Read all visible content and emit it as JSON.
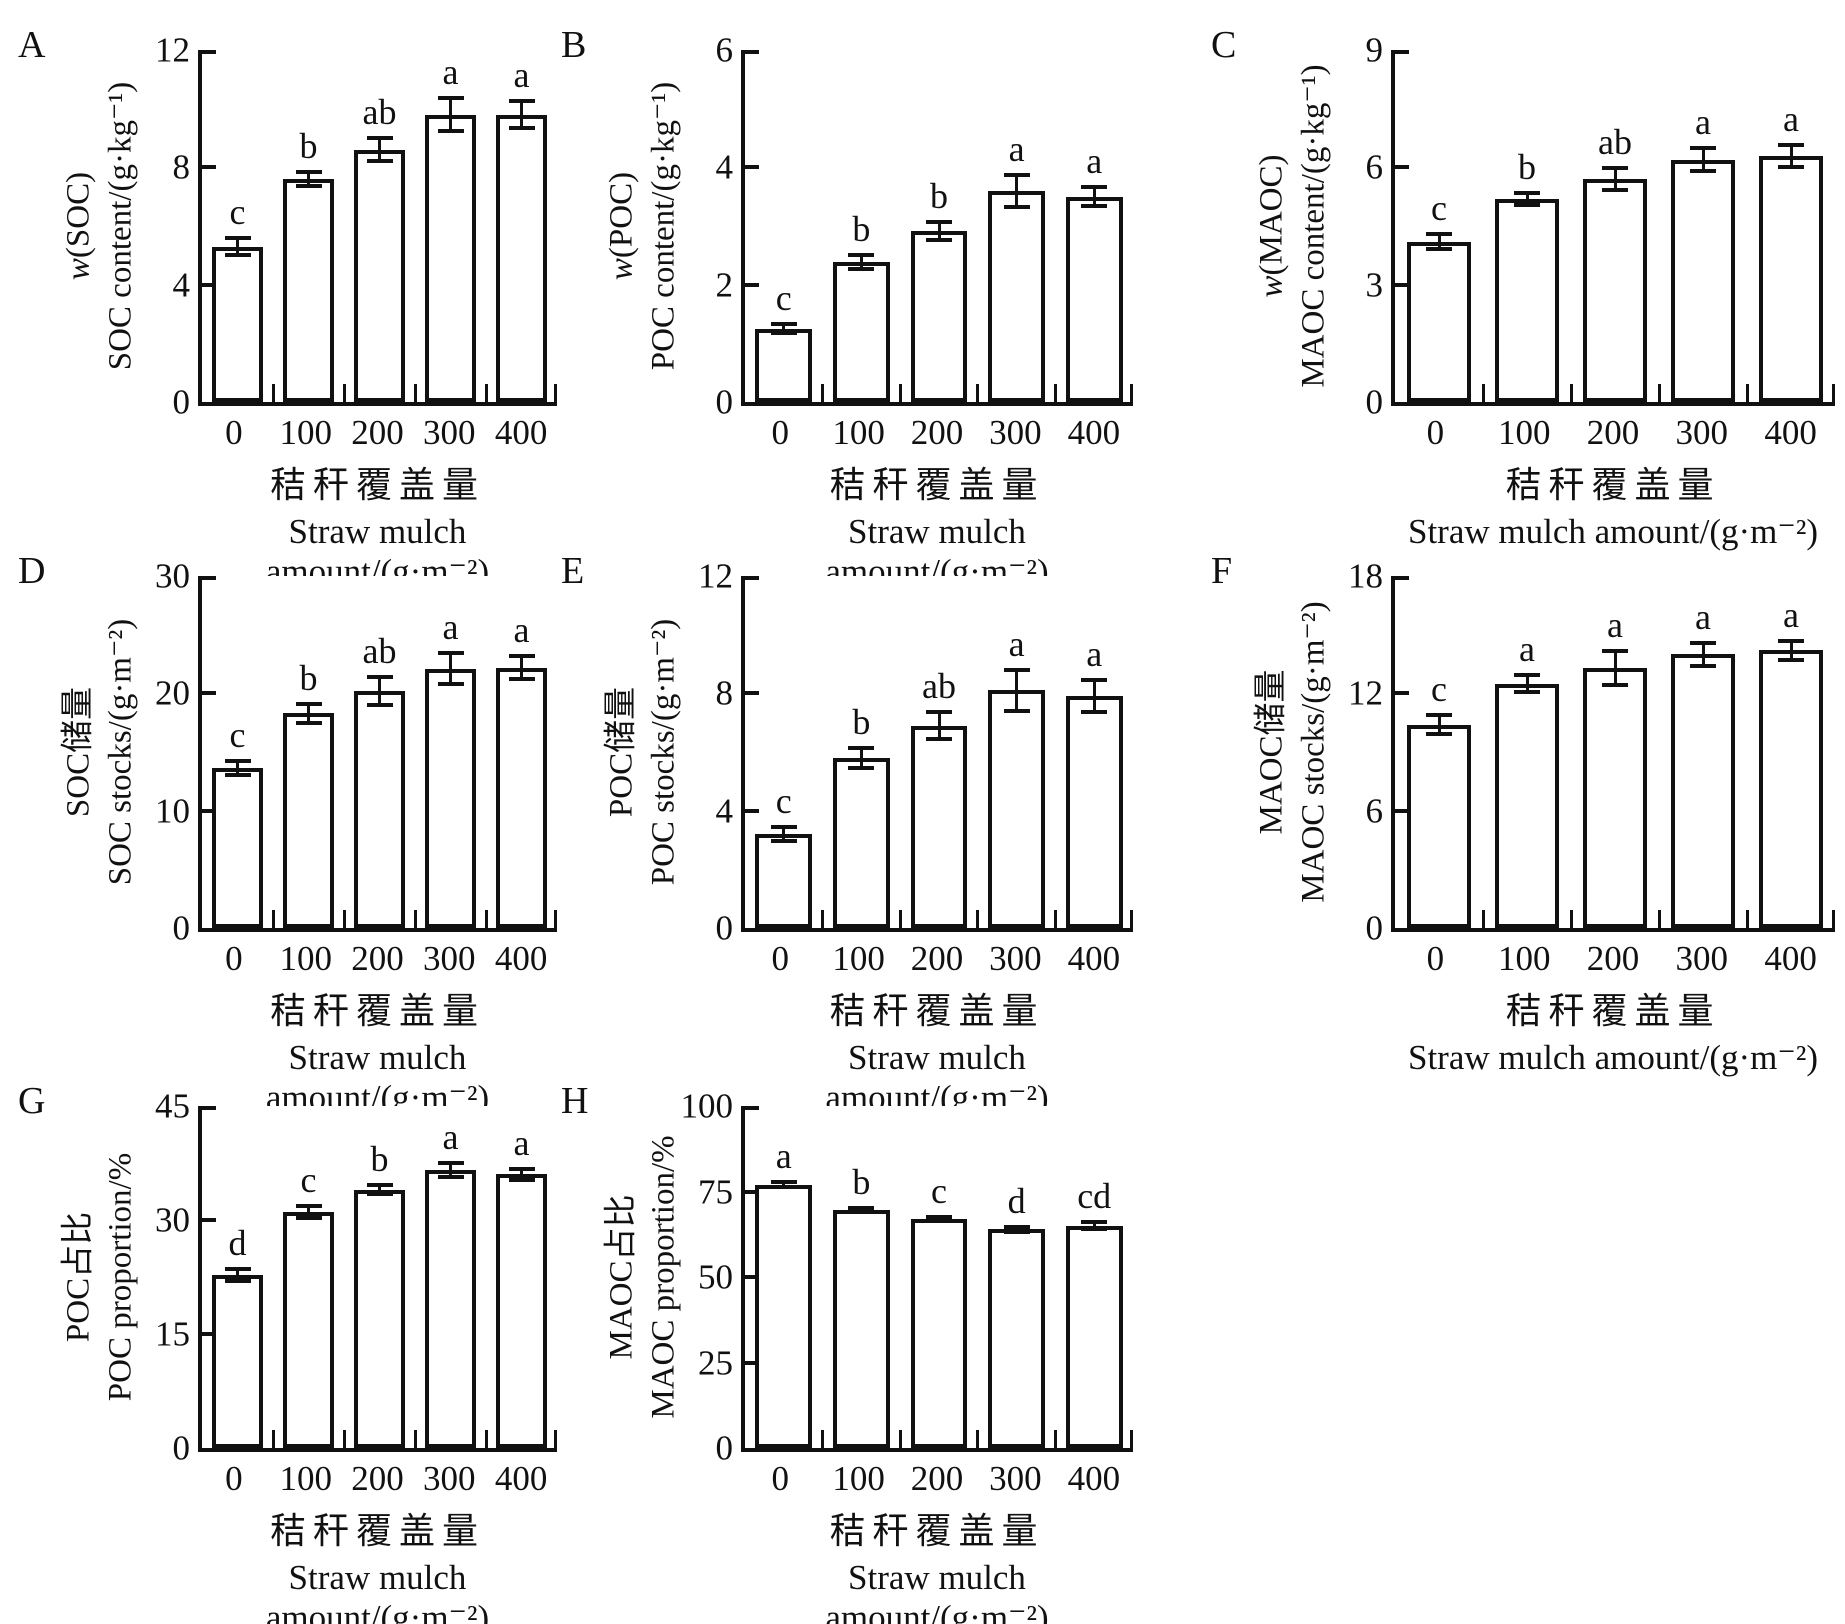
{
  "styles": {
    "background": "#ffffff",
    "ink": "#111111",
    "bar_fill": "#ffffff"
  },
  "x_axis": {
    "categories": [
      "0",
      "100",
      "200",
      "300",
      "400"
    ],
    "title_zh": "秸秆覆盖量",
    "title_en": "Straw mulch amount/(g·m⁻²)"
  },
  "chart_data": [
    {
      "type": "bar",
      "panel": "A",
      "ylabel_line1": "w(SOC)",
      "ylabel_line1_italic_first": true,
      "ylabel_line2": "SOC content/(g·kg⁻¹)",
      "ylim": [
        0,
        12
      ],
      "yticks": [
        0,
        4,
        8,
        12
      ],
      "categories": [
        "0",
        "100",
        "200",
        "300",
        "400"
      ],
      "values": [
        5.3,
        7.6,
        8.6,
        9.8,
        9.8
      ],
      "errors": [
        0.3,
        0.25,
        0.4,
        0.55,
        0.45
      ],
      "sig_letters": [
        "c",
        "b",
        "ab",
        "a",
        "a"
      ]
    },
    {
      "type": "bar",
      "panel": "B",
      "ylabel_line1": "w(POC)",
      "ylabel_line1_italic_first": true,
      "ylabel_line2": "POC content/(g·kg⁻¹)",
      "ylim": [
        0,
        6
      ],
      "yticks": [
        0,
        2,
        4,
        6
      ],
      "categories": [
        "0",
        "100",
        "200",
        "300",
        "400"
      ],
      "values": [
        1.25,
        2.38,
        2.92,
        3.6,
        3.5
      ],
      "errors": [
        0.08,
        0.12,
        0.15,
        0.27,
        0.16
      ],
      "sig_letters": [
        "c",
        "b",
        "b",
        "a",
        "a"
      ]
    },
    {
      "type": "bar",
      "panel": "C",
      "ylabel_line1": "w(MAOC)",
      "ylabel_line1_italic_first": true,
      "ylabel_line2": "MAOC content/(g·kg⁻¹)",
      "ylim": [
        0,
        9
      ],
      "yticks": [
        0,
        3,
        6,
        9
      ],
      "categories": [
        "0",
        "100",
        "200",
        "300",
        "400"
      ],
      "values": [
        4.1,
        5.2,
        5.7,
        6.2,
        6.3
      ],
      "errors": [
        0.2,
        0.15,
        0.28,
        0.3,
        0.28
      ],
      "sig_letters": [
        "c",
        "b",
        "ab",
        "a",
        "a"
      ]
    },
    {
      "type": "bar",
      "panel": "D",
      "ylabel_line1": "SOC储量",
      "ylabel_line1_italic_first": false,
      "ylabel_line2": "SOC stocks/(g·m⁻²)",
      "ylim": [
        0,
        30
      ],
      "yticks": [
        0,
        10,
        20,
        30
      ],
      "categories": [
        "0",
        "100",
        "200",
        "300",
        "400"
      ],
      "values": [
        13.6,
        18.3,
        20.2,
        22.1,
        22.2
      ],
      "errors": [
        0.6,
        0.8,
        1.2,
        1.3,
        1.0
      ],
      "sig_letters": [
        "c",
        "b",
        "ab",
        "a",
        "a"
      ]
    },
    {
      "type": "bar",
      "panel": "E",
      "ylabel_line1": "POC储量",
      "ylabel_line1_italic_first": false,
      "ylabel_line2": "POC stocks/(g·m⁻²)",
      "ylim": [
        0,
        12
      ],
      "yticks": [
        0,
        4,
        8,
        12
      ],
      "categories": [
        "0",
        "100",
        "200",
        "300",
        "400"
      ],
      "values": [
        3.2,
        5.8,
        6.9,
        8.1,
        7.9
      ],
      "errors": [
        0.25,
        0.35,
        0.45,
        0.7,
        0.55
      ],
      "sig_letters": [
        "c",
        "b",
        "ab",
        "a",
        "a"
      ]
    },
    {
      "type": "bar",
      "panel": "F",
      "ylabel_line1": "MAOC储量",
      "ylabel_line1_italic_first": false,
      "ylabel_line2": "MAOC stocks/(g·m⁻²)",
      "ylim": [
        0,
        18
      ],
      "yticks": [
        0,
        6,
        12,
        18
      ],
      "categories": [
        "0",
        "100",
        "200",
        "300",
        "400"
      ],
      "values": [
        10.4,
        12.5,
        13.3,
        14.0,
        14.2
      ],
      "errors": [
        0.5,
        0.45,
        0.85,
        0.6,
        0.5
      ],
      "sig_letters": [
        "c",
        "a",
        "a",
        "a",
        "a"
      ]
    },
    {
      "type": "bar",
      "panel": "G",
      "ylabel_line1": "POC占比",
      "ylabel_line1_italic_first": false,
      "ylabel_line2": "POC proportion/%",
      "ylim": [
        0,
        45
      ],
      "yticks": [
        0,
        15,
        30,
        45
      ],
      "categories": [
        "0",
        "100",
        "200",
        "300",
        "400"
      ],
      "values": [
        22.8,
        31.0,
        34.0,
        36.6,
        36.0
      ],
      "errors": [
        0.8,
        0.8,
        0.6,
        0.9,
        0.7
      ],
      "sig_letters": [
        "d",
        "c",
        "b",
        "a",
        "a"
      ]
    },
    {
      "type": "bar",
      "panel": "H",
      "ylabel_line1": "MAOC占比",
      "ylabel_line1_italic_first": false,
      "ylabel_line2": "MAOC proportion/%",
      "ylim": [
        0,
        100
      ],
      "yticks": [
        0,
        25,
        50,
        75,
        100
      ],
      "categories": [
        "0",
        "100",
        "200",
        "300",
        "400"
      ],
      "values": [
        77.0,
        69.5,
        67.0,
        64.0,
        65.0
      ],
      "errors": [
        0.8,
        0.6,
        0.6,
        0.7,
        1.0
      ],
      "sig_letters": [
        "a",
        "b",
        "c",
        "d",
        "cd"
      ]
    }
  ]
}
